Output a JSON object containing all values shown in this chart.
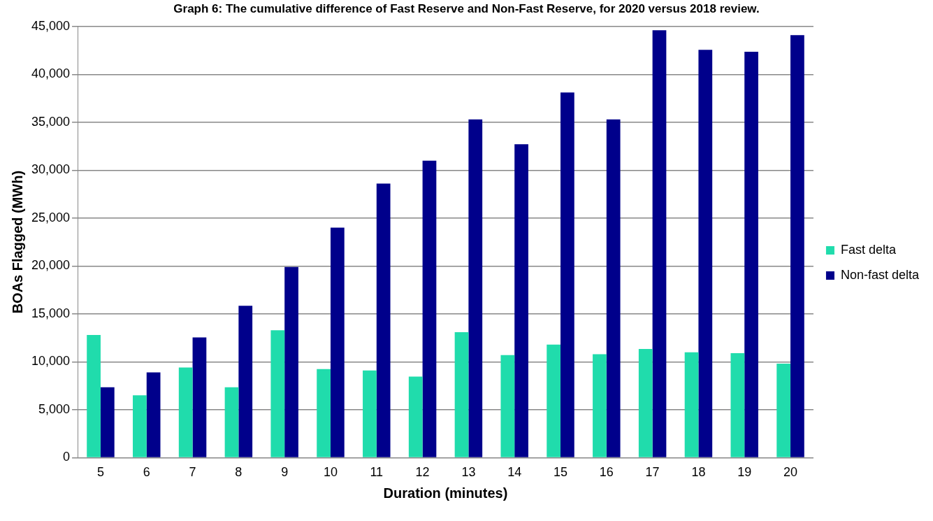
{
  "chart_data": {
    "type": "bar",
    "title": "Graph 6: The cumulative difference of Fast Reserve and Non-Fast Reserve, for 2020 versus 2018 review.",
    "xlabel": "Duration (minutes)",
    "ylabel": "BOAs Flagged (MWh)",
    "categories": [
      "5",
      "6",
      "7",
      "8",
      "9",
      "10",
      "11",
      "12",
      "13",
      "14",
      "15",
      "16",
      "17",
      "18",
      "19",
      "20"
    ],
    "series": [
      {
        "name": "Fast delta",
        "color": "#20dcac",
        "values": [
          12800,
          6500,
          9400,
          7350,
          13300,
          9250,
          9100,
          8450,
          13100,
          10700,
          11800,
          10800,
          11350,
          11000,
          10900,
          9800
        ]
      },
      {
        "name": "Non-fast delta",
        "color": "#00008b",
        "values": [
          7350,
          8900,
          12550,
          15850,
          19900,
          24000,
          28600,
          31000,
          35300,
          32700,
          38100,
          35300,
          44600,
          42550,
          42350,
          44100
        ]
      }
    ],
    "ylim": [
      0,
      45000
    ],
    "yticks": [
      0,
      {
        "value": 5000,
        "label": "5,000"
      },
      {
        "value": 10000,
        "label": "10,000"
      },
      {
        "value": 15000,
        "label": "15,000"
      },
      {
        "value": 20000,
        "label": "20,000"
      },
      {
        "value": 25000,
        "label": "25,000"
      },
      {
        "value": 30000,
        "label": "30,000"
      },
      {
        "value": 35000,
        "label": "35,000"
      },
      {
        "value": 40000,
        "label": "40,000"
      },
      {
        "value": 45000,
        "label": "45,000"
      }
    ],
    "grid": "y",
    "legend": "right"
  }
}
